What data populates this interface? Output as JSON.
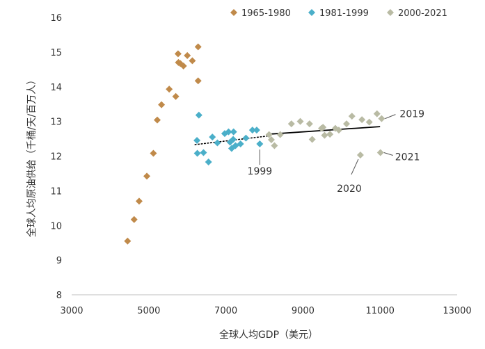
{
  "chart_data": {
    "type": "scatter",
    "title": "",
    "xlabel": "全球人均GDP（美元）",
    "ylabel": "全球人均原油供给（千桶/天/百万人）",
    "xlim": [
      3000,
      13000
    ],
    "ylim": [
      8,
      16
    ],
    "x_ticks": [
      "3000",
      "5000",
      "7000",
      "9000",
      "11000",
      "13000"
    ],
    "y_ticks": [
      "8",
      "9",
      "10",
      "11",
      "12",
      "13",
      "14",
      "15",
      "16"
    ],
    "grid": false,
    "legend_position": "top-right",
    "marker": "diamond",
    "series": [
      {
        "name": "1965-1980",
        "color": "#C08A4A",
        "points": [
          [
            4450,
            9.55
          ],
          [
            4620,
            10.17
          ],
          [
            4750,
            10.7
          ],
          [
            4950,
            11.42
          ],
          [
            5120,
            12.08
          ],
          [
            5220,
            13.04
          ],
          [
            5330,
            13.48
          ],
          [
            5530,
            13.93
          ],
          [
            5700,
            13.72
          ],
          [
            5760,
            14.95
          ],
          [
            5770,
            14.7
          ],
          [
            5820,
            14.67
          ],
          [
            5900,
            14.6
          ],
          [
            6000,
            14.9
          ],
          [
            6130,
            14.75
          ],
          [
            6280,
            14.17
          ],
          [
            6280,
            15.15
          ]
        ]
      },
      {
        "name": "1981-1999",
        "color": "#4BAFC9",
        "points": [
          [
            6250,
            12.45
          ],
          [
            6260,
            12.08
          ],
          [
            6300,
            13.18
          ],
          [
            6420,
            12.1
          ],
          [
            6550,
            11.83
          ],
          [
            6650,
            12.55
          ],
          [
            6780,
            12.38
          ],
          [
            6970,
            12.65
          ],
          [
            7070,
            12.7
          ],
          [
            7110,
            12.4
          ],
          [
            7150,
            12.22
          ],
          [
            7190,
            12.48
          ],
          [
            7200,
            12.7
          ],
          [
            7250,
            12.3
          ],
          [
            7380,
            12.35
          ],
          [
            7520,
            12.52
          ],
          [
            7690,
            12.75
          ],
          [
            7800,
            12.75
          ],
          [
            7880,
            12.35
          ]
        ]
      },
      {
        "name": "2000-2021",
        "color": "#B9BBA4",
        "points": [
          [
            8120,
            12.62
          ],
          [
            8180,
            12.47
          ],
          [
            8260,
            12.3
          ],
          [
            8410,
            12.62
          ],
          [
            8700,
            12.93
          ],
          [
            8930,
            13.0
          ],
          [
            9170,
            12.93
          ],
          [
            9240,
            12.48
          ],
          [
            9480,
            12.8
          ],
          [
            9520,
            12.83
          ],
          [
            9560,
            12.6
          ],
          [
            9700,
            12.63
          ],
          [
            9840,
            12.8
          ],
          [
            9930,
            12.75
          ],
          [
            10130,
            12.93
          ],
          [
            10270,
            13.15
          ],
          [
            10490,
            12.03
          ],
          [
            10530,
            13.05
          ],
          [
            10720,
            12.98
          ],
          [
            10920,
            13.22
          ],
          [
            11010,
            12.1
          ],
          [
            11040,
            13.08
          ]
        ]
      }
    ],
    "trendlines": [
      {
        "style": "dotted",
        "x": [
          6200,
          8100
        ],
        "y": [
          12.33,
          12.58
        ]
      },
      {
        "style": "solid",
        "x": [
          8100,
          11000
        ],
        "y": [
          12.63,
          12.85
        ]
      }
    ],
    "annotations": [
      {
        "text": "1999",
        "point": [
          7880,
          12.35
        ]
      },
      {
        "text": "2019",
        "point": [
          11040,
          13.08
        ]
      },
      {
        "text": "2020",
        "point": [
          10490,
          12.03
        ]
      },
      {
        "text": "2021",
        "point": [
          11010,
          12.1
        ]
      }
    ]
  }
}
